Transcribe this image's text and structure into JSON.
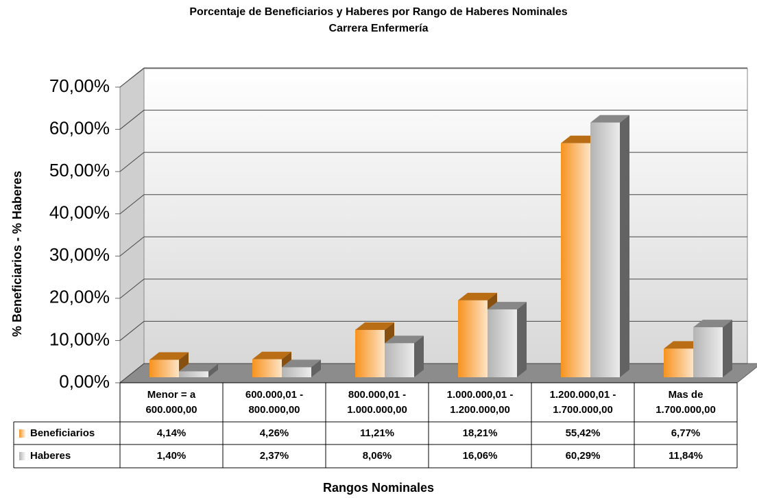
{
  "chart_data": {
    "type": "bar3d",
    "title": "Porcentaje de Beneficiarios y Haberes por Rango de Haberes Nominales",
    "subtitle": "Carrera Enfermería",
    "y_label": "% Beneficiarios - % Haberes",
    "x_label": "Rangos Nominales",
    "categories": [
      "Menor = a\n600.000,00",
      "600.000,01 -\n800.000,00",
      "800.000,01 -\n1.000.000,00",
      "1.000.000,01 -\n1.200.000,00",
      "1.200.000,01 -\n1.700.000,00",
      "Mas de\n1.700.000,00"
    ],
    "series": [
      {
        "name": "Beneficiarios",
        "color": "#f7931e",
        "values": [
          4.14,
          4.26,
          11.21,
          18.21,
          55.42,
          6.77
        ],
        "value_labels": [
          "4,14%",
          "4,26%",
          "11,21%",
          "18,21%",
          "55,42%",
          "6,77%"
        ]
      },
      {
        "name": "Haberes",
        "color": "#b4b4b4",
        "values": [
          1.4,
          2.37,
          8.06,
          16.06,
          60.29,
          11.84
        ],
        "value_labels": [
          "1,40%",
          "2,37%",
          "8,06%",
          "16,06%",
          "60,29%",
          "11,84%"
        ]
      }
    ],
    "ylim": [
      0,
      70
    ],
    "yticks": [
      {
        "value": 0,
        "label": "0,00%"
      },
      {
        "value": 10,
        "label": "10,00%"
      },
      {
        "value": 20,
        "label": "20,00%"
      },
      {
        "value": 30,
        "label": "30,00%"
      },
      {
        "value": 40,
        "label": "40,00%"
      },
      {
        "value": 50,
        "label": "50,00%"
      },
      {
        "value": 60,
        "label": "60,00%"
      },
      {
        "value": 70,
        "label": "70,00%"
      }
    ],
    "grid": true
  }
}
